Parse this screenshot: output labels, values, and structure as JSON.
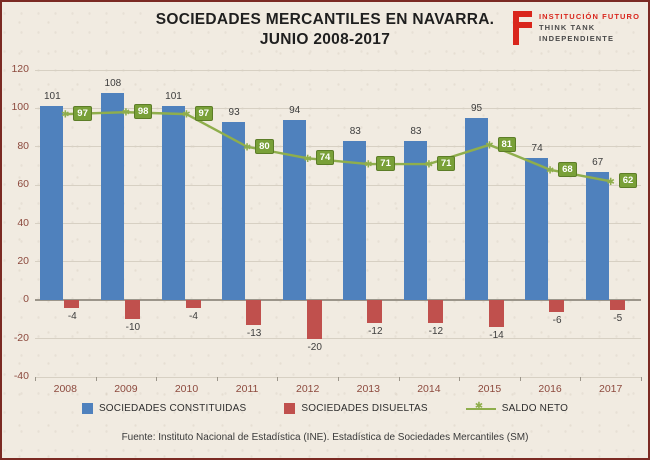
{
  "page": {
    "title_line1": "SOCIEDADES MERCANTILES EN NAVARRA.",
    "title_line2": "JUNIO 2008-2017",
    "source": "Fuente: Instituto Nacional de Estadística (INE). Estadística de Sociedades Mercantiles (SM)"
  },
  "logo": {
    "line1": "INSTITUCIÓN FUTURO",
    "line2": "THINK TANK",
    "line3": "INDEPENDIENTE"
  },
  "colors": {
    "background": "#f1ebe1",
    "frame_border": "#7b2a23",
    "logo_red": "#d9261c",
    "axis_label": "#8d4a3e",
    "grid": "#d7d0c3",
    "zero_axis": "#9b958a",
    "value_label": "#3d3d3d"
  },
  "chart_data": {
    "type": "bar",
    "subtype": "bar+line combo",
    "title": "SOCIEDADES MERCANTILES EN NAVARRA. JUNIO 2008-2017",
    "categories": [
      "2008",
      "2009",
      "2010",
      "2011",
      "2012",
      "2013",
      "2014",
      "2015",
      "2016",
      "2017"
    ],
    "series": [
      {
        "name": "SOCIEDADES  CONSTITUIDAS",
        "type": "bar",
        "color": "#4f81bd",
        "values": [
          101,
          108,
          101,
          93,
          94,
          83,
          83,
          95,
          74,
          67
        ]
      },
      {
        "name": "SOCIEDADES  DISUELTAS",
        "type": "bar",
        "color": "#c0504d",
        "values": [
          -4,
          -10,
          -4,
          -13,
          -20,
          -12,
          -12,
          -14,
          -6,
          -5
        ]
      },
      {
        "name": "SALDO NETO",
        "type": "line",
        "color": "#8fae4c",
        "label_bg": "#79a038",
        "values": [
          97,
          98,
          97,
          80,
          74,
          71,
          71,
          81,
          68,
          62
        ]
      }
    ],
    "ylim": [
      -40,
      120
    ],
    "yticks": [
      120,
      100,
      80,
      60,
      40,
      20,
      0,
      -20,
      -40
    ],
    "xlabel": "",
    "ylabel": "",
    "grid": true,
    "legend_position": "bottom"
  }
}
